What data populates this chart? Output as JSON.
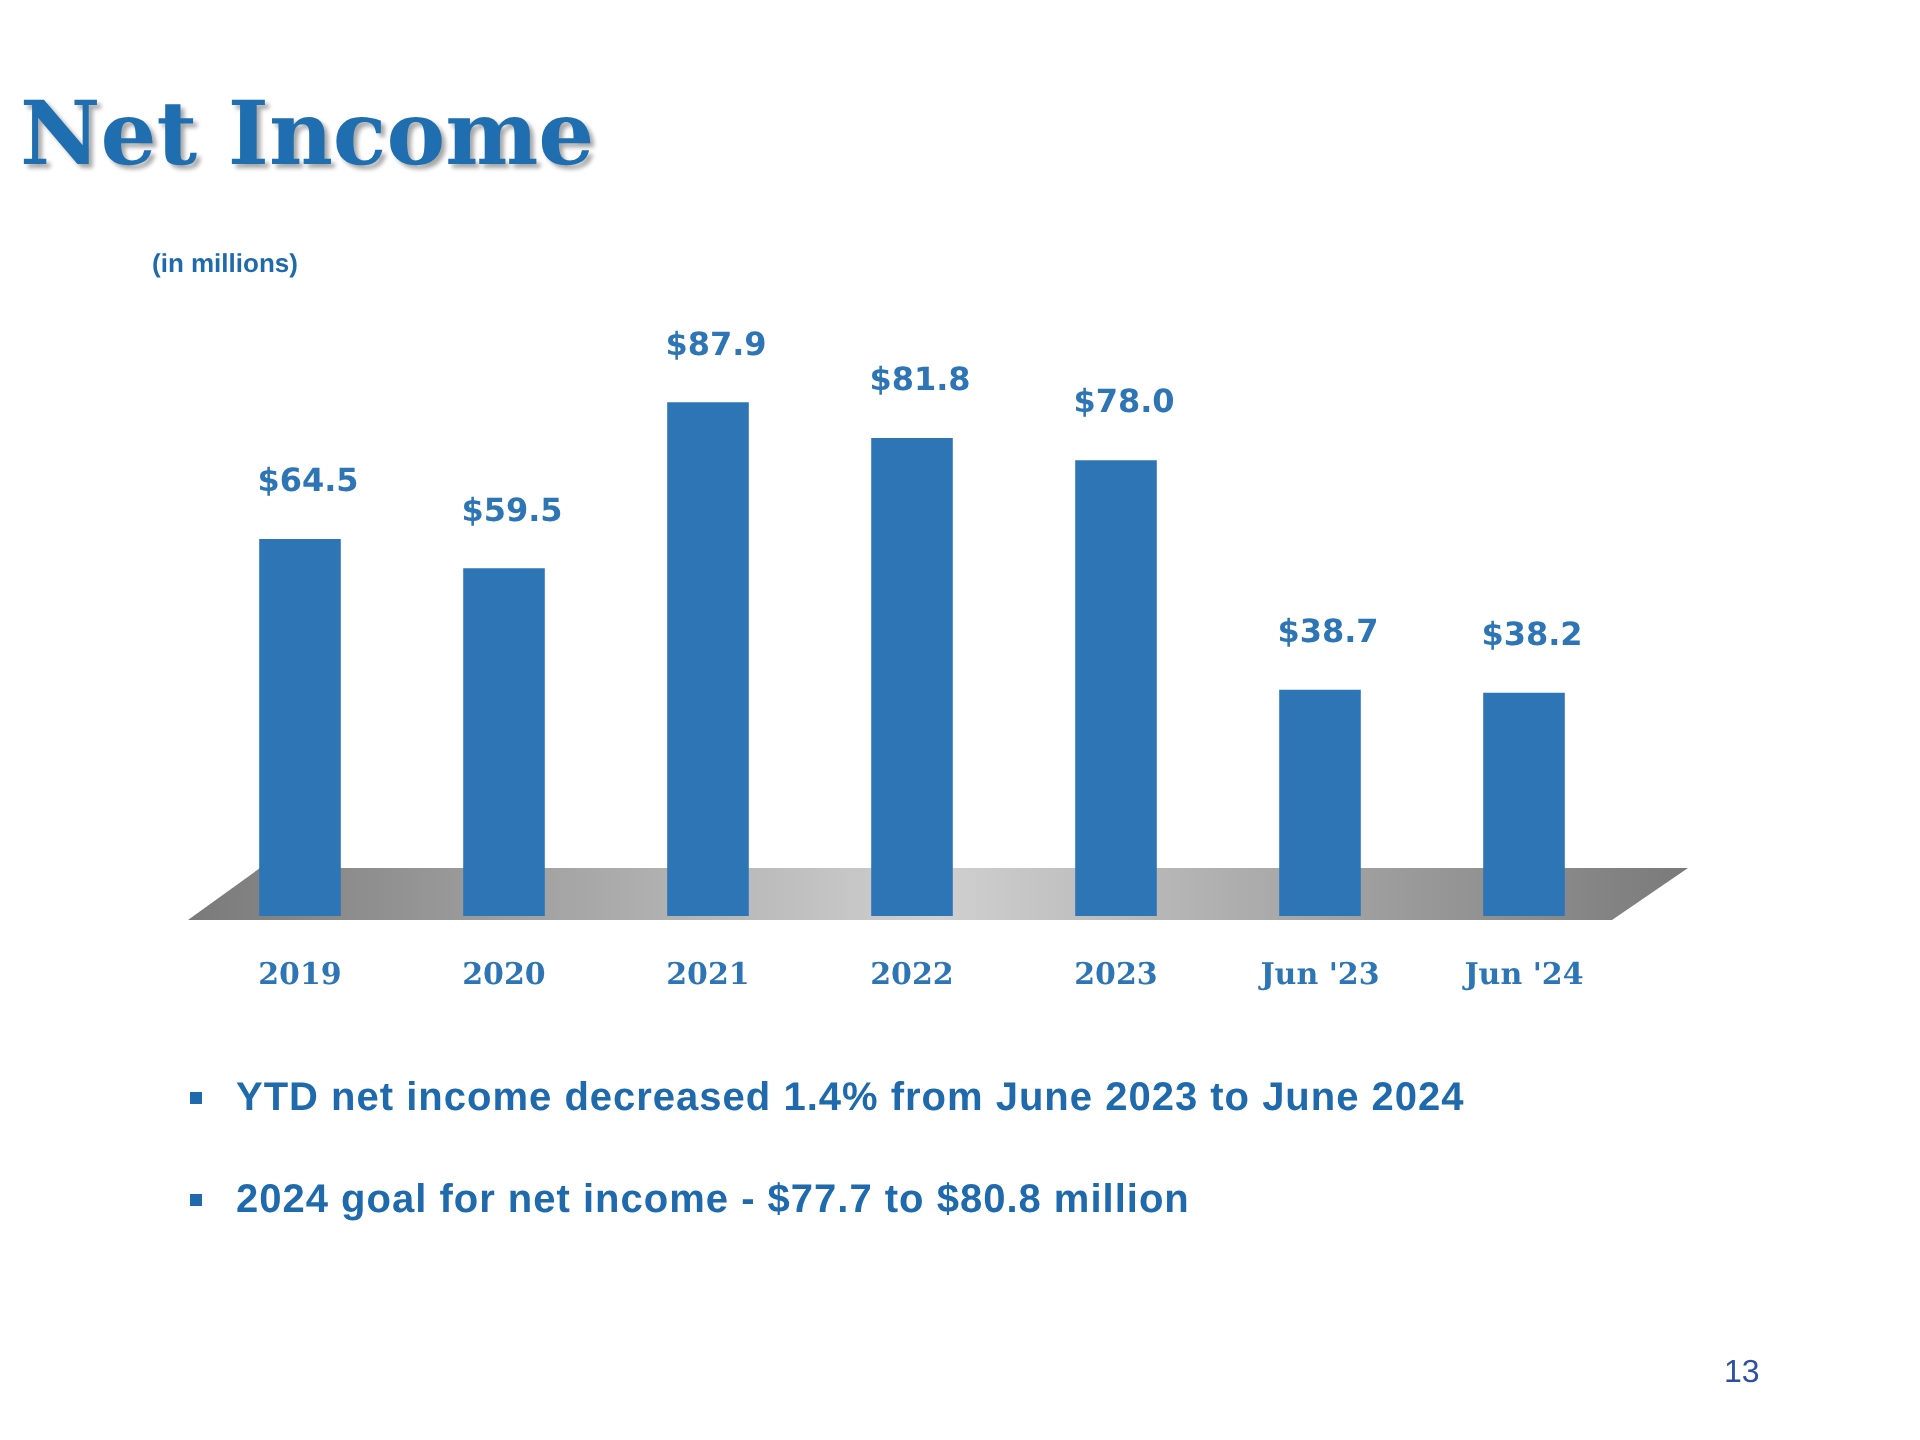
{
  "chart_data": {
    "type": "bar",
    "title": "Net Income",
    "subtitle": "(in millions)",
    "categories": [
      "2019",
      "2020",
      "2021",
      "2022",
      "2023",
      "Jun '23",
      "Jun '24"
    ],
    "values": [
      64.5,
      59.5,
      87.9,
      81.8,
      78.0,
      38.7,
      38.2
    ],
    "color": "#2e75b6",
    "value_labels": [
      "$64.5",
      "$59.5",
      "$87.9",
      "$81.8",
      "$78.0",
      "$38.7",
      "$38.2"
    ],
    "annotations": [
      "YTD net income decreased 1.4% from June 2023 to June 2024",
      "2024 goal for net income - $77.7 to $80.8 million",
      "13"
    ]
  }
}
